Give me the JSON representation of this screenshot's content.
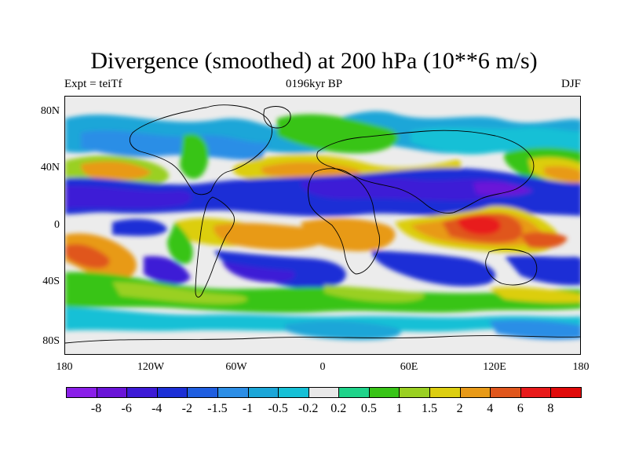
{
  "figure": {
    "title": "Divergence (smoothed) at 200 hPa (10**6 m/s)",
    "left_subtitle": "Expt = teiTf",
    "center_subtitle": "0196kyr BP",
    "right_subtitle": "DJF"
  },
  "axes": {
    "lat_labels": [
      "80N",
      "40N",
      "0",
      "40S",
      "80S"
    ],
    "lon_labels": [
      "180",
      "120W",
      "60W",
      "0",
      "60E",
      "120E",
      "180"
    ]
  },
  "colorbar": {
    "labels": [
      "-8",
      "-6",
      "-4",
      "-2",
      "-1.5",
      "-1",
      "-0.5",
      "-0.2",
      "0.2",
      "0.5",
      "1",
      "1.5",
      "2",
      "4",
      "6",
      "8"
    ],
    "colors": [
      "#8a1fe8",
      "#6a14d8",
      "#3d1ad6",
      "#1c2fd6",
      "#1f5ee0",
      "#2c8ee6",
      "#1ba6d8",
      "#16c0d6",
      "#e8e8e8",
      "#1fd38a",
      "#38c417",
      "#9ad022",
      "#dcce10",
      "#e89a18",
      "#e0561c",
      "#e81a1a",
      "#e00a0a"
    ]
  },
  "palette": {
    "land_outline": "#000000",
    "neutral": "#ececec"
  }
}
